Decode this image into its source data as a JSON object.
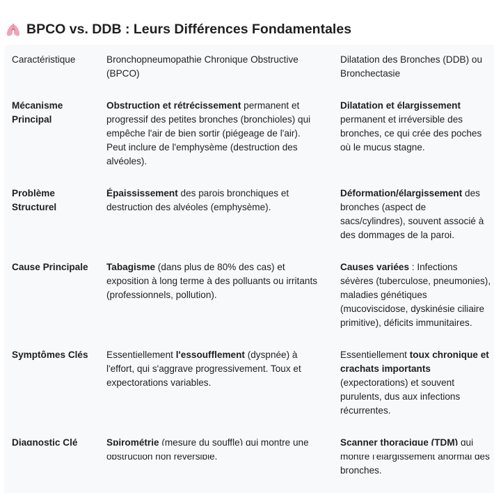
{
  "title": {
    "icon": "lungs-icon",
    "text": "BPCO vs. DDB : Leurs Différences Fondamentales"
  },
  "table": {
    "header": [
      "Caractéristique",
      "Bronchopneumopathie Chronique Obstructive (BPCO)",
      "Dilatation des Bronches (DDB) ou Bronchectasie"
    ],
    "rows": [
      {
        "label": "Mécanisme Principal",
        "bpco": [
          {
            "b": true,
            "t": "Obstruction et rétrécissement"
          },
          {
            "b": false,
            "t": " permanent et progressif des petites bronches (bronchioles) qui empêche l'air de bien sortir (piégeage de l'air). Peut inclure de l'emphysème (destruction des alvéoles)."
          }
        ],
        "ddb": [
          {
            "b": true,
            "t": "Dilatation et élargissement"
          },
          {
            "b": false,
            "t": " permanent et irréversible des bronches, ce qui crée des poches où le mucus stagne."
          }
        ]
      },
      {
        "label": "Problème Structurel",
        "bpco": [
          {
            "b": true,
            "t": "Épaississement"
          },
          {
            "b": false,
            "t": " des parois bronchiques et destruction des alvéoles (emphysème)."
          }
        ],
        "ddb": [
          {
            "b": true,
            "t": "Déformation/élargissement"
          },
          {
            "b": false,
            "t": " des bronches (aspect de sacs/cylindres), souvent associé à des dommages de la paroi."
          }
        ]
      },
      {
        "label": "Cause Principale",
        "bpco": [
          {
            "b": true,
            "t": "Tabagisme"
          },
          {
            "b": false,
            "t": " (dans plus de 80% des cas) et exposition à long terme à des polluants ou irritants (professionnels, pollution)."
          }
        ],
        "ddb": [
          {
            "b": true,
            "t": "Causes variées"
          },
          {
            "b": false,
            "t": " : Infections sévères (tuberculose, pneumonies), maladies génétiques (mucoviscidose, dyskinésie ciliaire primitive), déficits immunitaires."
          }
        ]
      },
      {
        "label": "Symptômes Clés",
        "bpco": [
          {
            "b": false,
            "t": "Essentiellement "
          },
          {
            "b": true,
            "t": "l'essoufflement"
          },
          {
            "b": false,
            "t": " (dyspnée) à l'effort, qui s'aggrave progressivement. Toux et expectorations variables."
          }
        ],
        "ddb": [
          {
            "b": false,
            "t": "Essentiellement "
          },
          {
            "b": true,
            "t": "toux chronique et crachats importants"
          },
          {
            "b": false,
            "t": " (expectorations) et souvent purulents, dus aux infections récurrentes."
          }
        ]
      },
      {
        "label": "Diagnostic Clé",
        "bpco": [
          {
            "b": true,
            "t": "Spirométrie"
          },
          {
            "b": false,
            "t": " (mesure du souffle) qui montre une obstruction non réversible."
          }
        ],
        "ddb": [
          {
            "b": true,
            "t": "Scanner thoracique (TDM)"
          },
          {
            "b": false,
            "t": " qui montre l'élargissement anormal des bronches."
          }
        ]
      }
    ]
  }
}
